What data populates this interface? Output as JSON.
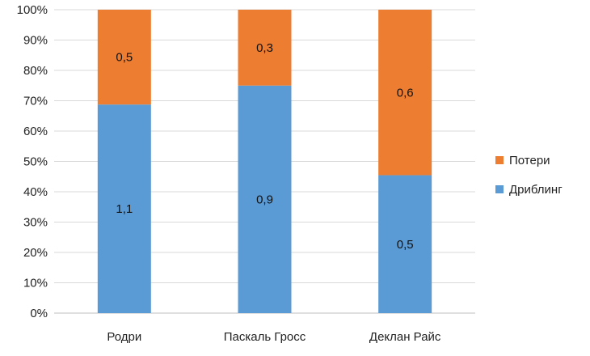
{
  "chart_data": {
    "type": "bar",
    "stacked": "percent",
    "categories": [
      "Родри",
      "Паскаль Гросс",
      "Деклан Райс"
    ],
    "series": [
      {
        "name": "Дриблинг",
        "color": "#5b9bd5",
        "values": [
          1.1,
          0.9,
          0.5
        ],
        "labels": [
          "1,1",
          "0,9",
          "0,5"
        ]
      },
      {
        "name": "Потери",
        "color": "#ed7d31",
        "values": [
          0.5,
          0.3,
          0.6
        ],
        "labels": [
          "0,5",
          "0,3",
          "0,6"
        ]
      }
    ],
    "yticks": [
      "0%",
      "10%",
      "20%",
      "30%",
      "40%",
      "50%",
      "60%",
      "70%",
      "80%",
      "90%",
      "100%"
    ],
    "ylim": [
      0,
      100
    ],
    "grid": true,
    "legend_position": "right",
    "legend_order": [
      "Потери",
      "Дриблинг"
    ]
  }
}
